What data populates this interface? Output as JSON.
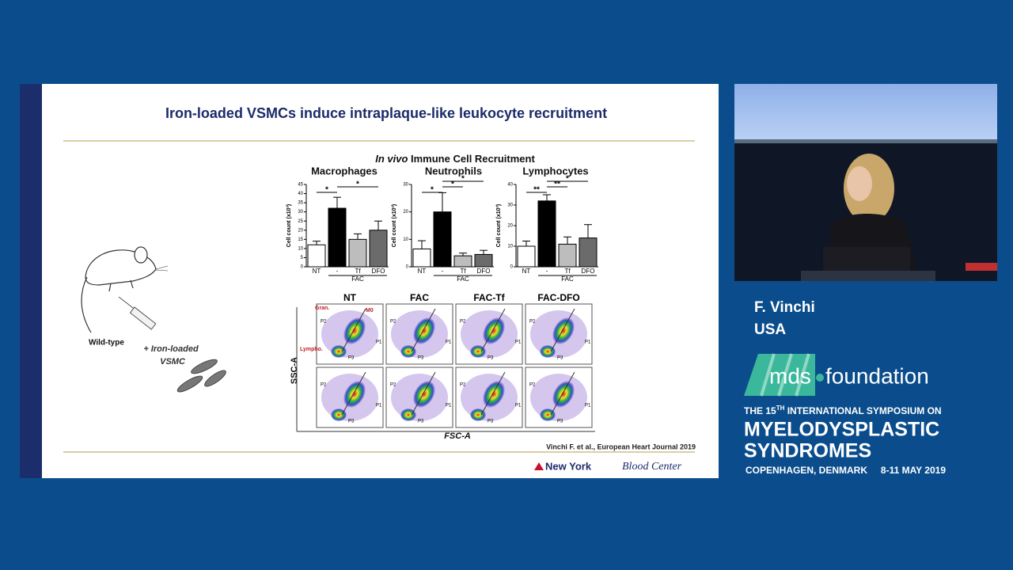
{
  "slide": {
    "title": "Iron-loaded VSMCs induce intraplaque-like leukocyte recruitment",
    "citation": "Vinchi F. et al., European Heart Journal 2019",
    "logo_brand": "New York",
    "logo_suffix": "Blood Center",
    "mouse_label": "Wild-type",
    "injection_label": [
      "+ Iron-loaded",
      "VSMC"
    ],
    "bar_panel": {
      "heading_italic": "In vivo",
      "heading": "Immune Cell Recruitment",
      "y_label": "Cell count (x10³)",
      "group_label": "FAC",
      "bar_colors": [
        "#ffffff",
        "#000000",
        "#bdbdbd",
        "#6b6b6b"
      ],
      "charts": [
        {
          "title": "Macrophages",
          "categories": [
            "NT",
            "-",
            "Tf",
            "DFO"
          ],
          "values": [
            12,
            32,
            15,
            20
          ],
          "errors": [
            2,
            6,
            3,
            5
          ],
          "ylim": [
            0,
            45
          ],
          "yticks": [
            0,
            5,
            10,
            15,
            20,
            25,
            30,
            35,
            40,
            45
          ],
          "significance": [
            "*",
            "*"
          ]
        },
        {
          "title": "Neutrophils",
          "categories": [
            "NT",
            "-",
            "Tf",
            "DFO"
          ],
          "values": [
            6.5,
            20,
            4,
            4.5
          ],
          "errors": [
            3,
            7,
            1,
            1.5
          ],
          "ylim": [
            0,
            30
          ],
          "yticks": [
            0,
            10,
            20,
            30
          ],
          "significance": [
            "*",
            "*",
            "*"
          ]
        },
        {
          "title": "Lymphocytes",
          "categories": [
            "NT",
            "-",
            "Tf",
            "DFO"
          ],
          "values": [
            10,
            32,
            11,
            14
          ],
          "errors": [
            2.5,
            3,
            3.5,
            6.5
          ],
          "ylim": [
            0,
            40
          ],
          "yticks": [
            0,
            10,
            20,
            30,
            40
          ],
          "significance": [
            "**",
            "**",
            "*"
          ]
        }
      ]
    },
    "flow_panel": {
      "columns": [
        "NT",
        "FAC",
        "FAC-Tf",
        "FAC-DFO"
      ],
      "gates": [
        "P1",
        "P2",
        "P3"
      ],
      "populations": [
        "Gran.",
        "M0",
        "Lympho."
      ],
      "x_label": "FSC-A",
      "y_label": "SSC-A"
    }
  },
  "speaker": {
    "name": "F. Vinchi",
    "country": "USA"
  },
  "event": {
    "logo_left": "mds",
    "logo_right": "foundation",
    "line1_pre": "THE 15",
    "line1_sup": "TH",
    "line1_post": " INTERNATIONAL SYMPOSIUM ON",
    "line2": "MYELODYSPLASTIC",
    "line3": "SYNDROMES",
    "city": "COPENHAGEN, DENMARK",
    "dates": "8-11 MAY 2019"
  }
}
